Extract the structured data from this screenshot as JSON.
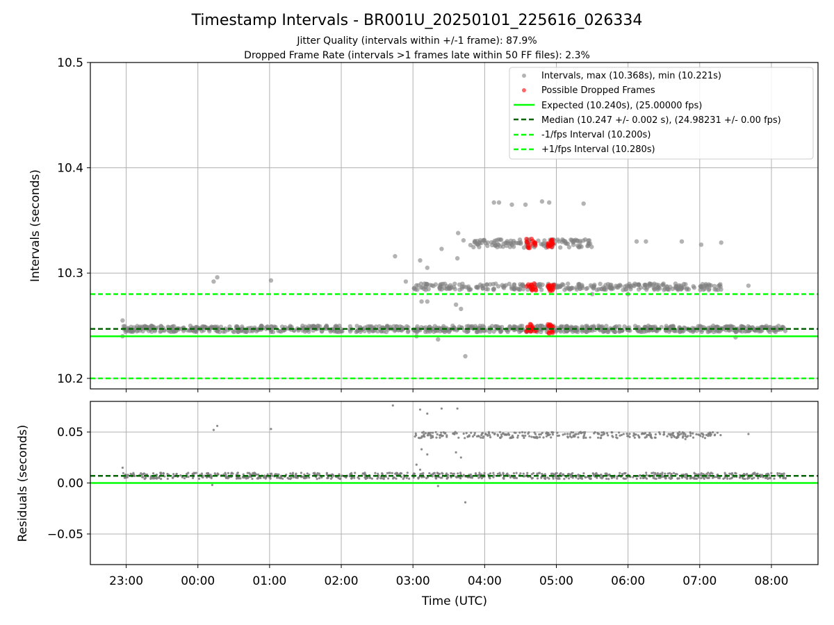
{
  "chart_data": [
    {
      "type": "scatter",
      "title": "Timestamp Intervals - BR001U_20250101_225616_026334",
      "subtitle_lines": [
        "Jitter Quality (intervals within +/-1 frame): 87.9%",
        "Dropped Frame Rate (intervals >1 frames late within 50 FF files): 2.3%"
      ],
      "xlabel": "Time (UTC)",
      "ylabel": "Intervals (seconds)",
      "ylim": [
        10.19,
        10.5
      ],
      "xlim_hours": [
        -1.5,
        8.65
      ],
      "x_ticks": [
        "23:00",
        "00:00",
        "01:00",
        "02:00",
        "03:00",
        "04:00",
        "05:00",
        "06:00",
        "07:00",
        "08:00"
      ],
      "x_tick_values": [
        -1,
        0,
        1,
        2,
        3,
        4,
        5,
        6,
        7,
        8
      ],
      "y_ticks": [
        "10.2",
        "10.3",
        "10.4",
        "10.5"
      ],
      "y_tick_values": [
        10.2,
        10.3,
        10.4,
        10.5
      ],
      "grid": true,
      "legend_position": "top-right",
      "legend": [
        "Intervals, max (10.368s), min (10.221s)",
        "Possible Dropped Frames",
        "Expected (10.240s), (25.00000 fps)",
        "Median (10.247 +/- 0.002 s), (24.98231 +/- 0.00 fps)",
        "-1/fps Interval (10.200s)",
        "+1/fps Interval (10.280s)"
      ],
      "reference_lines": {
        "expected": 10.24,
        "median": 10.247,
        "minus_one_fps": 10.2,
        "plus_one_fps": 10.28
      },
      "series": [
        {
          "name": "Intervals, max (10.368s), min (10.221s)",
          "color": "#808080",
          "bands": [
            {
              "y": 10.247,
              "x_range": [
                -1.05,
                8.2
              ],
              "spread": 0.003
            },
            {
              "y": 10.287,
              "x_range": [
                3.0,
                7.3
              ],
              "spread": 0.003
            },
            {
              "y": 10.328,
              "x_range": [
                3.7,
                5.5
              ],
              "spread": 0.004
            }
          ],
          "outliers": [
            {
              "x": -1.05,
              "y": 10.255
            },
            {
              "x": -1.05,
              "y": 10.24
            },
            {
              "x": 0.22,
              "y": 10.292
            },
            {
              "x": 0.27,
              "y": 10.296
            },
            {
              "x": 1.02,
              "y": 10.293
            },
            {
              "x": 2.75,
              "y": 10.316
            },
            {
              "x": 2.9,
              "y": 10.292
            },
            {
              "x": 3.1,
              "y": 10.312
            },
            {
              "x": 3.2,
              "y": 10.305
            },
            {
              "x": 3.12,
              "y": 10.273
            },
            {
              "x": 3.2,
              "y": 10.273
            },
            {
              "x": 3.4,
              "y": 10.323
            },
            {
              "x": 3.62,
              "y": 10.314
            },
            {
              "x": 3.63,
              "y": 10.338
            },
            {
              "x": 3.6,
              "y": 10.27
            },
            {
              "x": 3.67,
              "y": 10.266
            },
            {
              "x": 3.73,
              "y": 10.221
            },
            {
              "x": 4.13,
              "y": 10.367
            },
            {
              "x": 4.2,
              "y": 10.367
            },
            {
              "x": 4.38,
              "y": 10.365
            },
            {
              "x": 4.57,
              "y": 10.365
            },
            {
              "x": 4.8,
              "y": 10.368
            },
            {
              "x": 4.9,
              "y": 10.367
            },
            {
              "x": 5.38,
              "y": 10.366
            },
            {
              "x": 6.12,
              "y": 10.33
            },
            {
              "x": 6.25,
              "y": 10.33
            },
            {
              "x": 6.75,
              "y": 10.33
            },
            {
              "x": 7.02,
              "y": 10.327
            },
            {
              "x": 7.3,
              "y": 10.329
            },
            {
              "x": 7.68,
              "y": 10.288
            },
            {
              "x": 3.05,
              "y": 10.24
            },
            {
              "x": 3.35,
              "y": 10.237
            },
            {
              "x": 7.5,
              "y": 10.239
            },
            {
              "x": 6.0,
              "y": 10.28
            },
            {
              "x": 5.5,
              "y": 10.28
            }
          ]
        },
        {
          "name": "Possible Dropped Frames",
          "color": "#ff0000",
          "clusters": [
            {
              "x_range": [
                4.58,
                4.72
              ],
              "y_values": [
                10.247,
                10.287,
                10.328
              ]
            },
            {
              "x_range": [
                4.88,
                4.96
              ],
              "y_values": [
                10.247,
                10.287,
                10.328
              ]
            }
          ]
        }
      ]
    },
    {
      "type": "scatter",
      "ylabel": "Residuals (seconds)",
      "ylim": [
        -0.08,
        0.08
      ],
      "y_ticks": [
        "−0.05",
        "0.00",
        "0.05"
      ],
      "y_tick_values": [
        -0.05,
        0.0,
        0.05
      ],
      "grid": true,
      "reference_lines": {
        "expected": 0.0,
        "median": 0.007
      },
      "series": [
        {
          "color": "#808080",
          "bands": [
            {
              "y": 0.007,
              "x_range": [
                -1.05,
                8.2
              ],
              "spread": 0.003
            },
            {
              "y": 0.047,
              "x_range": [
                3.0,
                7.3
              ],
              "spread": 0.003
            }
          ],
          "outliers": [
            {
              "x": -1.05,
              "y": 0.015
            },
            {
              "x": 0.22,
              "y": 0.052
            },
            {
              "x": 0.27,
              "y": 0.056
            },
            {
              "x": 1.02,
              "y": 0.053
            },
            {
              "x": 2.72,
              "y": 0.076
            },
            {
              "x": 3.1,
              "y": 0.072
            },
            {
              "x": 3.2,
              "y": 0.068
            },
            {
              "x": 3.12,
              "y": 0.033
            },
            {
              "x": 3.2,
              "y": 0.028
            },
            {
              "x": 3.4,
              "y": 0.073
            },
            {
              "x": 3.62,
              "y": 0.073
            },
            {
              "x": 3.6,
              "y": 0.03
            },
            {
              "x": 3.67,
              "y": 0.025
            },
            {
              "x": 3.73,
              "y": -0.019
            },
            {
              "x": 3.05,
              "y": 0.018
            },
            {
              "x": 3.1,
              "y": 0.013
            },
            {
              "x": 3.35,
              "y": -0.003
            },
            {
              "x": 7.68,
              "y": 0.048
            },
            {
              "x": 6.8,
              "y": 0.043
            },
            {
              "x": 0.2,
              "y": -0.002
            }
          ]
        }
      ]
    }
  ]
}
